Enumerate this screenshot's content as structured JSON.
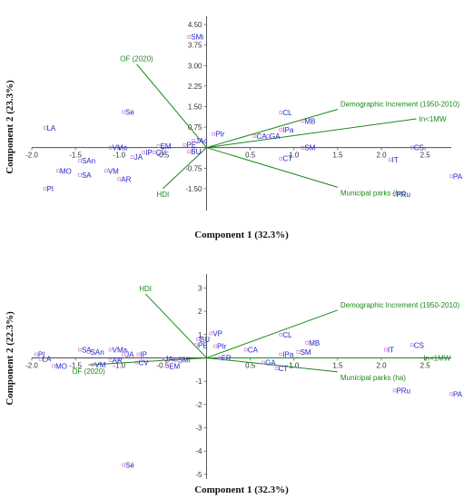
{
  "chart_data": [
    {
      "type": "scatter",
      "subtype": "biplot",
      "xlabel": "Component 1 (32.3%)",
      "ylabel": "Component 2 (23.3%)",
      "xlim": [
        -2.0,
        2.8
      ],
      "ylim": [
        -2.3,
        4.8
      ],
      "x_ticks": [
        -2.0,
        -1.5,
        -1.0,
        -0.5,
        0.5,
        1.0,
        1.5,
        2.0,
        2.5
      ],
      "x_tick_labels": [
        "-2.0",
        "-1.5",
        "-1.0",
        "-0.5",
        "0.5",
        "1.0",
        "1.5",
        "2.0",
        "2.5"
      ],
      "y_ticks": [
        4.5,
        3.75,
        3.0,
        2.25,
        1.5,
        0.75,
        -0.75,
        -1.5
      ],
      "y_tick_labels": [
        "4.50",
        "3.75",
        "3.00",
        "2.25",
        "1.50",
        "0.75",
        "-0.75",
        "-1.50"
      ],
      "points": [
        {
          "label": "SMi",
          "x": -0.2,
          "y": 4.05
        },
        {
          "label": "LA",
          "x": -1.85,
          "y": 0.72
        },
        {
          "label": "Sé",
          "x": -0.95,
          "y": 1.3
        },
        {
          "label": "PIr",
          "x": 0.08,
          "y": 0.5
        },
        {
          "label": "CL",
          "x": 0.85,
          "y": 1.28
        },
        {
          "label": "MB",
          "x": 1.1,
          "y": 0.97
        },
        {
          "label": "IPa",
          "x": 0.85,
          "y": 0.65
        },
        {
          "label": "CA",
          "x": 0.55,
          "y": 0.42
        },
        {
          "label": "GA",
          "x": 0.7,
          "y": 0.42
        },
        {
          "label": "SM",
          "x": 1.1,
          "y": 0.0
        },
        {
          "label": "CS",
          "x": 2.35,
          "y": 0.0
        },
        {
          "label": "CT",
          "x": 0.85,
          "y": -0.4
        },
        {
          "label": "IT",
          "x": 2.1,
          "y": -0.45
        },
        {
          "label": "PA",
          "x": 2.8,
          "y": -1.05
        },
        {
          "label": "PRu",
          "x": 2.15,
          "y": -1.7
        },
        {
          "label": "JAc",
          "x": -0.15,
          "y": 0.25
        },
        {
          "label": "PE",
          "x": -0.25,
          "y": 0.1
        },
        {
          "label": "BU",
          "x": -0.2,
          "y": -0.15
        },
        {
          "label": "EM",
          "x": -0.55,
          "y": 0.05
        },
        {
          "label": "IP",
          "x": -0.72,
          "y": -0.18
        },
        {
          "label": "CV",
          "x": -0.6,
          "y": -0.18
        },
        {
          "label": "VMa",
          "x": -1.1,
          "y": 0.0
        },
        {
          "label": "JA",
          "x": -0.85,
          "y": -0.35
        },
        {
          "label": "SAn",
          "x": -1.45,
          "y": -0.48
        },
        {
          "label": "MO",
          "x": -1.7,
          "y": -0.85
        },
        {
          "label": "SA",
          "x": -1.45,
          "y": -1.0
        },
        {
          "label": "VM",
          "x": -1.15,
          "y": -0.85
        },
        {
          "label": "AR",
          "x": -1.0,
          "y": -1.15
        },
        {
          "label": "PI",
          "x": -1.85,
          "y": -1.5
        }
      ],
      "vectors": [
        {
          "label": "OF (2020)",
          "x": -0.8,
          "y": 3.05
        },
        {
          "label": "Demographic Increment (1950-2010)",
          "x": 1.5,
          "y": 1.4
        },
        {
          "label": "In<1MW",
          "x": 2.4,
          "y": 1.05
        },
        {
          "label": "Municipal parks (ha)",
          "x": 1.5,
          "y": -1.45
        },
        {
          "label": "HDI",
          "x": -0.5,
          "y": -1.5
        }
      ]
    },
    {
      "type": "scatter",
      "subtype": "biplot",
      "xlabel": "Component 1 (32.3%)",
      "ylabel": "Component 2 (22.3%)",
      "xlim": [
        -2.0,
        2.8
      ],
      "ylim": [
        -5.2,
        3.6
      ],
      "x_ticks": [
        -2.0,
        -1.5,
        -1.0,
        -0.5,
        0.5,
        1.0,
        1.5,
        2.0,
        2.5
      ],
      "x_tick_labels": [
        "-2.0",
        "-1.5",
        "-1.0",
        "-0.5",
        "0.5",
        "1.0",
        "1.5",
        "2.0",
        "2.5"
      ],
      "y_ticks": [
        3,
        2,
        1,
        -1,
        -2,
        -3,
        -4,
        -5
      ],
      "y_tick_labels": [
        "3",
        "2",
        "1",
        "-1",
        "-2",
        "-3",
        "-4",
        "-5"
      ],
      "points": [
        {
          "label": "VP",
          "x": 0.05,
          "y": 1.05
        },
        {
          "label": "BU",
          "x": -0.1,
          "y": 0.8
        },
        {
          "label": "PE",
          "x": -0.12,
          "y": 0.55
        },
        {
          "label": "PIr",
          "x": 0.1,
          "y": 0.5
        },
        {
          "label": "CL",
          "x": 0.85,
          "y": 1.0
        },
        {
          "label": "MB",
          "x": 1.15,
          "y": 0.65
        },
        {
          "label": "CA",
          "x": 0.45,
          "y": 0.35
        },
        {
          "label": "IPa",
          "x": 0.85,
          "y": 0.15
        },
        {
          "label": "SM",
          "x": 1.05,
          "y": 0.25
        },
        {
          "label": "IT",
          "x": 2.05,
          "y": 0.35
        },
        {
          "label": "CS",
          "x": 2.35,
          "y": 0.55
        },
        {
          "label": "GA",
          "x": 0.65,
          "y": -0.2
        },
        {
          "label": "CT",
          "x": 0.8,
          "y": -0.45
        },
        {
          "label": "FR",
          "x": 0.15,
          "y": 0.0
        },
        {
          "label": "PRu",
          "x": 2.15,
          "y": -1.4
        },
        {
          "label": "PA",
          "x": 2.8,
          "y": -1.55
        },
        {
          "label": "PI",
          "x": -1.95,
          "y": 0.15
        },
        {
          "label": "LA",
          "x": -1.9,
          "y": -0.05
        },
        {
          "label": "MO",
          "x": -1.75,
          "y": -0.35
        },
        {
          "label": "SA",
          "x": -1.45,
          "y": 0.35
        },
        {
          "label": "SAn",
          "x": -1.35,
          "y": 0.25
        },
        {
          "label": "VMa",
          "x": -1.1,
          "y": 0.35
        },
        {
          "label": "JA",
          "x": -0.95,
          "y": 0.15
        },
        {
          "label": "IP",
          "x": -0.78,
          "y": 0.15
        },
        {
          "label": "AR",
          "x": -1.1,
          "y": -0.1
        },
        {
          "label": "VM",
          "x": -1.3,
          "y": -0.3
        },
        {
          "label": "CV",
          "x": -0.8,
          "y": -0.2
        },
        {
          "label": "JAc",
          "x": -0.5,
          "y": -0.05
        },
        {
          "label": "SMi",
          "x": -0.35,
          "y": -0.08
        },
        {
          "label": "EM",
          "x": -0.45,
          "y": -0.35
        },
        {
          "label": "Sé",
          "x": -0.95,
          "y": -4.6
        }
      ],
      "vectors": [
        {
          "label": "HDI",
          "x": -0.7,
          "y": 2.75
        },
        {
          "label": "Demographic Increment (1950-2010)",
          "x": 1.5,
          "y": 2.05
        },
        {
          "label": "In<1MW",
          "x": 2.45,
          "y": 0.0
        },
        {
          "label": "Municipal parks (ha)",
          "x": 1.5,
          "y": -0.6
        },
        {
          "label": "OF (2020)",
          "x": -1.35,
          "y": -0.3
        }
      ]
    }
  ],
  "colors": {
    "points": "#2222cc",
    "vectors": "#1a8a1a",
    "axes": "#333333"
  }
}
